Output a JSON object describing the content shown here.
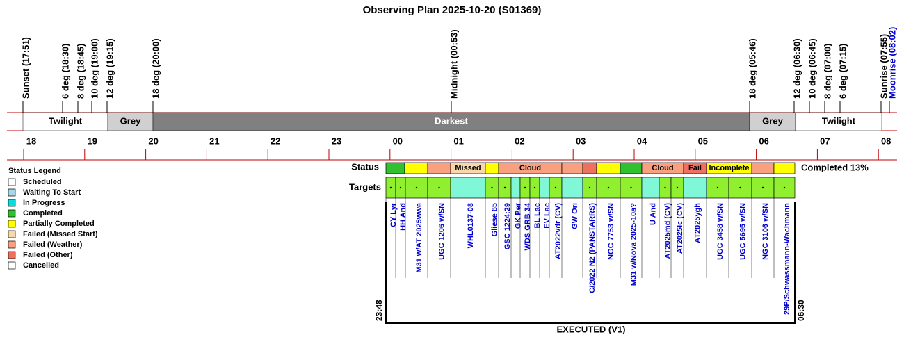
{
  "title": "Observing Plan 2025-10-20 (S01369)",
  "events": [
    "Sunset (17:51)",
    "6 deg (18:30)",
    "8 deg (18:45)",
    "10 deg (19:00)",
    "12 deg (19:15)",
    "18 deg (20:00)",
    "Midnight (00:53)",
    "18 deg (05:46)",
    "12 deg (06:30)",
    "10 deg (06:45)",
    "8 deg (07:00)",
    "6 deg (07:15)",
    "Sunrise (07:55)",
    "Moonrise (08:02)"
  ],
  "bands": [
    "Twilight",
    "Grey",
    "Darkest",
    "Grey",
    "Twilight"
  ],
  "hours": [
    "18",
    "19",
    "20",
    "21",
    "22",
    "23",
    "00",
    "01",
    "02",
    "03",
    "04",
    "05",
    "06",
    "07",
    "08"
  ],
  "legend": {
    "title": "Status Legend",
    "items": [
      "Scheduled",
      "Waiting To Start",
      "In Progress",
      "Completed",
      "Partially Completed",
      "Failed (Missed Start)",
      "Failed (Weather)",
      "Failed (Other)",
      "Cancelled"
    ],
    "colors": [
      "#ffffff",
      "#a8d8e8",
      "#00e0e0",
      "#30c030",
      "#ffff00",
      "#f8d8a8",
      "#f8a080",
      "#f07060",
      "#ffffff"
    ]
  },
  "status": {
    "label": "Status",
    "cells": [
      {
        "color": "#30c030"
      },
      {
        "color": "#ffff00"
      },
      {
        "color": "#f8a080"
      },
      {
        "color": "#f8d8a8",
        "text": "Missed"
      },
      {
        "color": "#ffff00"
      },
      {
        "color": "#f8a080",
        "text": "Cloud"
      },
      {
        "color": "#f8a080"
      },
      {
        "color": "#f07060"
      },
      {
        "color": "#ffff00"
      },
      {
        "color": "#30c030"
      },
      {
        "color": "#f8a080",
        "text": "Cloud"
      },
      {
        "color": "#f07060",
        "text": "Fail"
      },
      {
        "color": "#ffff00",
        "text": "Incomplete"
      },
      {
        "color": "#f8a080"
      },
      {
        "color": "#ffff00"
      }
    ],
    "summary": "Completed 13%"
  },
  "targets": {
    "label": "Targets",
    "names": [
      "CY Lyr",
      "HH And",
      "M31 w/AT 2025wwe",
      "UGC 1206 w/SN",
      "WHL0137-08",
      "Gliese 65",
      "GSC 1224:29",
      "GK Per",
      "WDS GRB 34",
      "BL Lac",
      "EV Lac",
      "AT2022vdr (CV)",
      "GW Ori",
      "C/2022 N2 (PANSTARRS)",
      "NGC 7753 w/SN",
      "M31 w/Nova 2025-10a?",
      "U And",
      "AT2025md (CV)",
      "AT2025lc (CV)",
      "AT2025ygh",
      "UGC 3458 w/SN",
      "UGC 5695 w/SN",
      "NGC 3106 w/SN",
      "29P/Schwassmann-Wachmann"
    ],
    "colors": [
      "#90f030",
      "#90f030",
      "#90f030",
      "#90f030",
      "#80f8d8",
      "#90f030",
      "#90f030",
      "#80f8d8",
      "#90f030",
      "#90f030",
      "#80f8d8",
      "#90f030",
      "#80f8d8",
      "#90f030",
      "#90f030",
      "#90f030",
      "#80f8d8",
      "#90f030",
      "#90f030",
      "#80f8d8",
      "#90f030",
      "#90f030",
      "#90f030",
      "#90f030"
    ]
  },
  "start": "23:48",
  "end": "06:30",
  "footer": "EXECUTED (V1)"
}
